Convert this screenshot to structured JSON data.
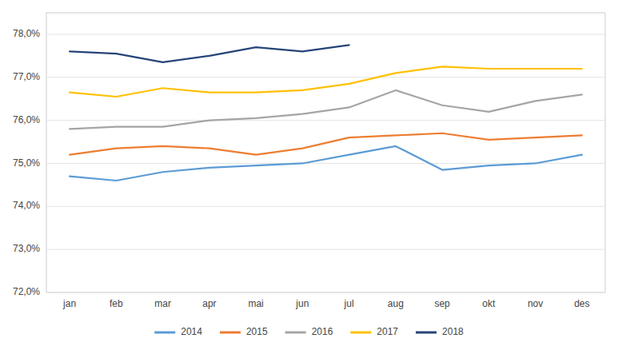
{
  "chart_data": {
    "type": "line",
    "categories": [
      "jan",
      "feb",
      "mar",
      "apr",
      "mai",
      "jun",
      "jul",
      "aug",
      "sep",
      "okt",
      "nov",
      "des"
    ],
    "series": [
      {
        "name": "2014",
        "color": "#5B9BD5",
        "values": [
          74.7,
          74.6,
          74.8,
          74.9,
          74.95,
          75.0,
          75.2,
          75.4,
          74.85,
          74.95,
          75.0,
          75.2
        ]
      },
      {
        "name": "2015",
        "color": "#ED7D31",
        "values": [
          75.2,
          75.35,
          75.4,
          75.35,
          75.2,
          75.35,
          75.6,
          75.65,
          75.7,
          75.55,
          75.6,
          75.65
        ]
      },
      {
        "name": "2016",
        "color": "#A5A5A5",
        "values": [
          75.8,
          75.85,
          75.85,
          76.0,
          76.05,
          76.15,
          76.3,
          76.7,
          76.35,
          76.2,
          76.45,
          76.6
        ]
      },
      {
        "name": "2017",
        "color": "#FFC000",
        "values": [
          76.65,
          76.55,
          76.75,
          76.65,
          76.65,
          76.7,
          76.85,
          77.1,
          77.25,
          77.2,
          77.2,
          77.2
        ]
      },
      {
        "name": "2018",
        "color": "#264478",
        "values": [
          77.6,
          77.55,
          77.35,
          77.5,
          77.7,
          77.6,
          77.75,
          null,
          null,
          null,
          null,
          null
        ]
      }
    ],
    "ylim": [
      72.0,
      78.5
    ],
    "yticks": [
      {
        "value": 72.0,
        "label": "72,0%"
      },
      {
        "value": 73.0,
        "label": "73,0%"
      },
      {
        "value": 74.0,
        "label": "74,0%"
      },
      {
        "value": 75.0,
        "label": "75,0%"
      },
      {
        "value": 76.0,
        "label": "76,0%"
      },
      {
        "value": 77.0,
        "label": "77,0%"
      },
      {
        "value": 78.0,
        "label": "78,0%"
      }
    ],
    "grid": true,
    "legend": "bottom"
  }
}
